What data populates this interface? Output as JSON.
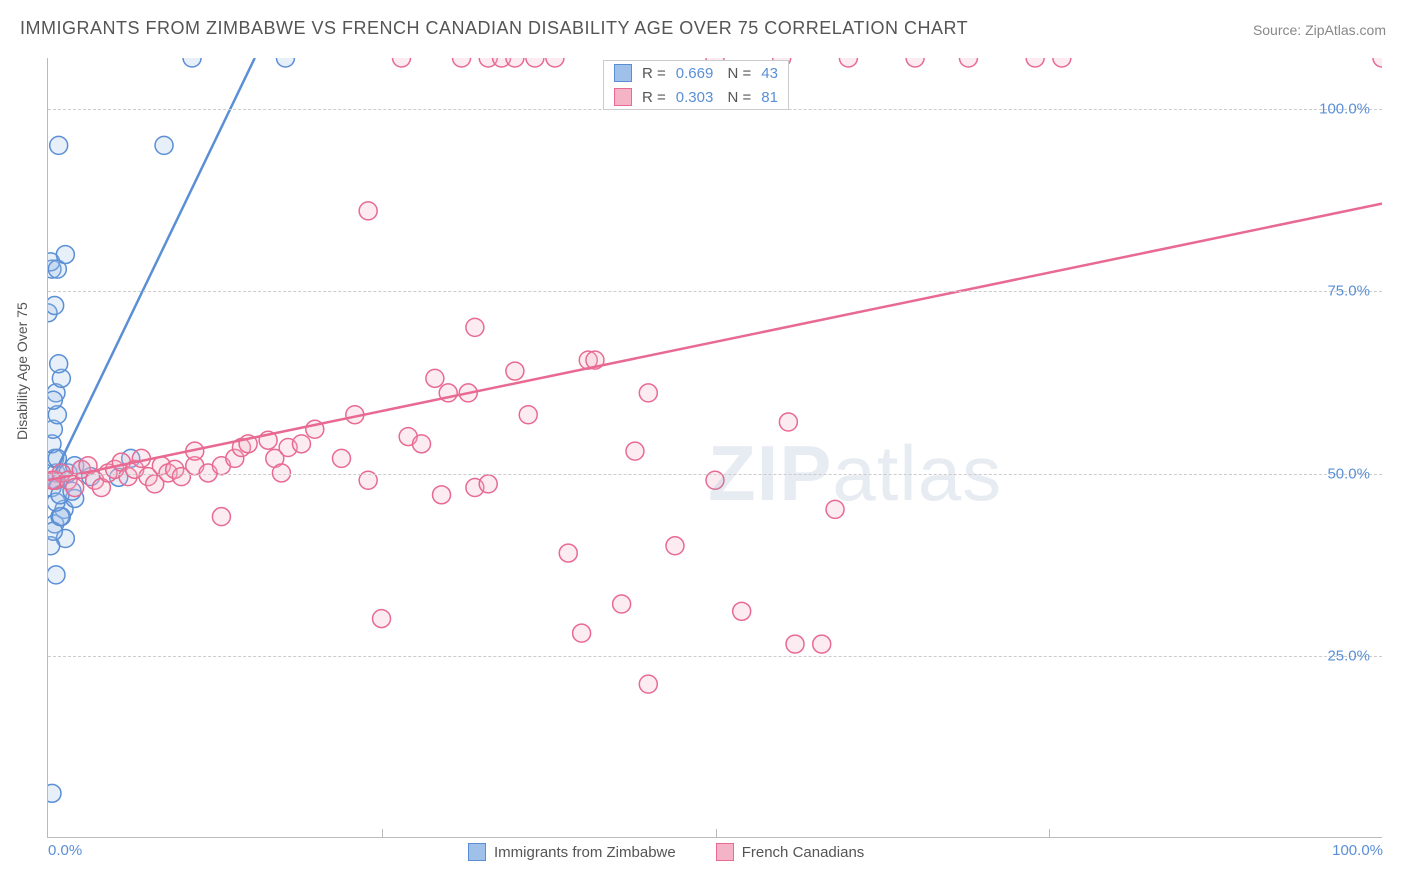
{
  "title": "IMMIGRANTS FROM ZIMBABWE VS FRENCH CANADIAN DISABILITY AGE OVER 75 CORRELATION CHART",
  "source": "Source: ZipAtlas.com",
  "ylabel": "Disability Age Over 75",
  "watermark_a": "ZIP",
  "watermark_b": "atlas",
  "chart": {
    "type": "scatter",
    "xlim": [
      0,
      100
    ],
    "ylim": [
      0,
      107
    ],
    "x_ticks": [
      0,
      25,
      50,
      75,
      100
    ],
    "x_tick_labels": [
      "0.0%",
      "",
      "",
      "",
      "100.0%"
    ],
    "y_ticks": [
      25,
      50,
      75,
      100
    ],
    "y_tick_labels": [
      "25.0%",
      "50.0%",
      "75.0%",
      "100.0%"
    ],
    "grid_color": "#cccccc",
    "axis_color": "#bbbbbb",
    "bg": "#ffffff",
    "marker_radius": 9,
    "marker_fill_opacity": 0.25,
    "marker_stroke_width": 1.5,
    "line_width": 2.5
  },
  "series": [
    {
      "id": "zimbabwe",
      "label": "Immigrants from Zimbabwe",
      "color_stroke": "#5a8fd6",
      "color_fill": "#9fc0e8",
      "R": "0.669",
      "N": "43",
      "fit": {
        "x0": 0,
        "y0": 48,
        "x1": 15.5,
        "y1": 107
      },
      "points": [
        [
          0.3,
          6
        ],
        [
          0.6,
          36
        ],
        [
          1.3,
          41
        ],
        [
          0.5,
          43
        ],
        [
          1.2,
          45
        ],
        [
          0.9,
          44
        ],
        [
          0.2,
          40
        ],
        [
          0.4,
          42
        ],
        [
          0.3,
          48
        ],
        [
          0.6,
          50
        ],
        [
          1.0,
          50
        ],
        [
          0.5,
          49
        ],
        [
          1.5,
          50
        ],
        [
          1.0,
          44
        ],
        [
          0.6,
          46
        ],
        [
          0.5,
          52
        ],
        [
          0.3,
          54
        ],
        [
          0.4,
          56
        ],
        [
          0.7,
          58
        ],
        [
          0.6,
          61
        ],
        [
          1.0,
          63
        ],
        [
          0.8,
          65
        ],
        [
          0.0,
          72
        ],
        [
          0.3,
          78
        ],
        [
          0.2,
          79
        ],
        [
          0.7,
          78
        ],
        [
          1.3,
          80
        ],
        [
          0.5,
          73
        ],
        [
          3.2,
          49.5
        ],
        [
          5.3,
          49.4
        ],
        [
          6.2,
          52
        ],
        [
          2.0,
          51
        ],
        [
          2.5,
          50.5
        ],
        [
          0.8,
          95
        ],
        [
          2.0,
          46.5
        ],
        [
          10.8,
          107
        ],
        [
          17.8,
          107
        ],
        [
          8.7,
          95
        ],
        [
          0.6,
          49
        ],
        [
          0.9,
          47
        ],
        [
          1.8,
          47.5
        ],
        [
          0.4,
          60
        ],
        [
          0.7,
          52
        ]
      ]
    },
    {
      "id": "french",
      "label": "French Canadians",
      "color_stroke": "#e86a92",
      "color_fill": "#f4b3c6",
      "R": "0.303",
      "N": "81",
      "fit": {
        "x0": 0,
        "y0": 49,
        "x1": 100,
        "y1": 87
      },
      "points": [
        [
          0.5,
          49
        ],
        [
          1.0,
          50
        ],
        [
          1.5,
          49
        ],
        [
          2.0,
          48
        ],
        [
          2.5,
          50.5
        ],
        [
          3.0,
          51
        ],
        [
          3.5,
          49
        ],
        [
          4.0,
          48
        ],
        [
          4.5,
          50
        ],
        [
          5.0,
          50.5
        ],
        [
          5.5,
          51.5
        ],
        [
          6.0,
          49.5
        ],
        [
          6.5,
          50.5
        ],
        [
          7.0,
          52
        ],
        [
          7.5,
          49.5
        ],
        [
          8.0,
          48.5
        ],
        [
          8.5,
          51
        ],
        [
          9.0,
          50
        ],
        [
          9.5,
          50.5
        ],
        [
          10,
          49.5
        ],
        [
          11,
          51
        ],
        [
          11,
          53
        ],
        [
          12,
          50
        ],
        [
          13,
          44
        ],
        [
          13,
          51
        ],
        [
          14,
          52
        ],
        [
          14.5,
          53.5
        ],
        [
          15,
          54
        ],
        [
          16.5,
          54.5
        ],
        [
          17,
          52
        ],
        [
          17.5,
          50
        ],
        [
          18,
          53.5
        ],
        [
          19,
          54
        ],
        [
          20,
          56
        ],
        [
          22,
          52
        ],
        [
          23,
          58
        ],
        [
          24,
          86
        ],
        [
          25,
          30
        ],
        [
          24,
          49
        ],
        [
          27,
          55
        ],
        [
          26.5,
          107
        ],
        [
          28,
          54
        ],
        [
          29,
          63
        ],
        [
          29.5,
          47
        ],
        [
          30,
          61
        ],
        [
          31,
          107
        ],
        [
          31.5,
          61
        ],
        [
          32,
          48
        ],
        [
          32,
          70
        ],
        [
          33,
          107
        ],
        [
          34,
          107
        ],
        [
          35,
          107
        ],
        [
          36.5,
          107
        ],
        [
          38,
          107
        ],
        [
          33,
          48.5
        ],
        [
          35,
          64
        ],
        [
          36,
          58
        ],
        [
          39,
          39
        ],
        [
          40,
          28
        ],
        [
          40.5,
          65.5
        ],
        [
          41,
          65.5
        ],
        [
          43,
          32
        ],
        [
          44,
          53
        ],
        [
          45,
          61
        ],
        [
          45,
          21
        ],
        [
          47,
          40
        ],
        [
          50,
          49
        ],
        [
          50,
          107
        ],
        [
          52,
          31
        ],
        [
          55,
          107
        ],
        [
          55.5,
          57
        ],
        [
          56,
          26.5
        ],
        [
          58,
          26.5
        ],
        [
          59,
          45
        ],
        [
          60,
          107
        ],
        [
          65,
          107
        ],
        [
          69,
          107
        ],
        [
          74,
          107
        ],
        [
          76,
          107
        ],
        [
          100,
          107
        ],
        [
          0.3,
          49
        ]
      ]
    }
  ],
  "legend_bottom": [
    {
      "label": "Immigrants from Zimbabwe",
      "swatch_fill": "#9fc0e8",
      "swatch_stroke": "#5a8fd6"
    },
    {
      "label": "French Canadians",
      "swatch_fill": "#f4b3c6",
      "swatch_stroke": "#e86a92"
    }
  ]
}
